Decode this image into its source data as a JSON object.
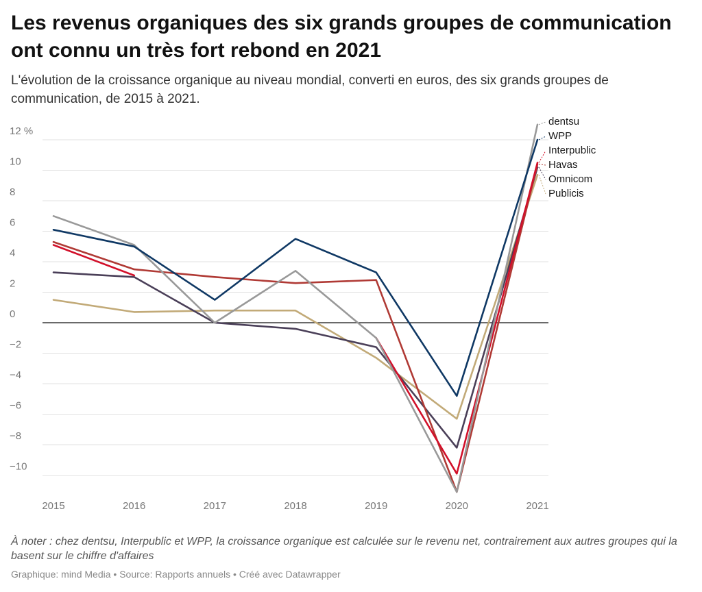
{
  "title": "Les revenus organiques des six grands groupes de communication ont connu un très fort rebond en 2021",
  "subtitle": "L'évolution de la croissance organique au niveau mondial, converti en euros, des six grands groupes de communication, de 2015 à 2021.",
  "notes": "À noter : chez dentsu, Interpublic et WPP, la croissance organique est calculée sur le revenu net, contrairement aux autres groupes qui la basent sur le chiffre d'affaires",
  "credits": "Graphique: mind Media • Source: Rapports annuels • Créé avec Datawrapper",
  "chart_data": {
    "type": "line",
    "x": [
      "2015",
      "2016",
      "2017",
      "2018",
      "2019",
      "2020",
      "2021"
    ],
    "ylim": [
      -11,
      13
    ],
    "yticks": [
      -10,
      -8,
      -6,
      -4,
      -2,
      0,
      2,
      4,
      6,
      8,
      10,
      12
    ],
    "ytick_labels": [
      "−10",
      "−8",
      "−6",
      "−4",
      "−2",
      "0",
      "2",
      "4",
      "6",
      "8",
      "10",
      "12 %"
    ],
    "grid": true,
    "legend": "direct labels at right end of lines",
    "series": [
      {
        "name": "Publicis",
        "color": "#c2aa78",
        "values": [
          1.5,
          0.7,
          0.8,
          0.8,
          -2.3,
          -6.3,
          9.7
        ]
      },
      {
        "name": "Omnicom",
        "color": "#4a3f58",
        "values": [
          3.3,
          3.0,
          0.0,
          -0.4,
          -1.6,
          -8.2,
          10.2
        ]
      },
      {
        "name": "Havas",
        "color": "#b03a35",
        "values": [
          5.3,
          3.5,
          3.0,
          2.6,
          2.8,
          -11.1,
          10.4
        ]
      },
      {
        "name": "Interpublic",
        "color": "#d2102a",
        "values": [
          5.1,
          3.1,
          null,
          null,
          -1.0,
          -9.9,
          10.5
        ]
      },
      {
        "name": "dentsu",
        "color": "#999999",
        "values": [
          7.0,
          5.1,
          0.0,
          3.4,
          -1.0,
          -11.1,
          13.0
        ]
      },
      {
        "name": "WPP",
        "color": "#0f3864",
        "values": [
          6.1,
          5.0,
          1.5,
          5.5,
          3.3,
          -4.8,
          12.0
        ]
      }
    ]
  }
}
